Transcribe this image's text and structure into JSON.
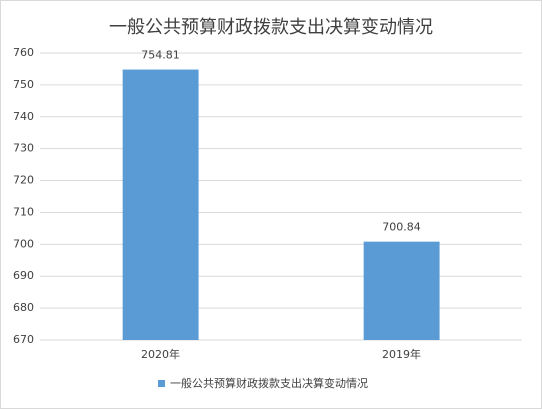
{
  "chart_data": {
    "type": "bar",
    "title": "一般公共预算财政拨款支出决算变动情况",
    "categories": [
      "2020年",
      "2019年"
    ],
    "series": [
      {
        "name": "一般公共预算财政拨款支出决算变动情况",
        "color": "#5b9bd5",
        "values": [
          754.81,
          700.84
        ]
      }
    ],
    "ylim": [
      670,
      760
    ],
    "yticks": [
      670,
      680,
      690,
      700,
      710,
      720,
      730,
      740,
      750,
      760
    ],
    "grid": true,
    "legend": "bottom"
  }
}
